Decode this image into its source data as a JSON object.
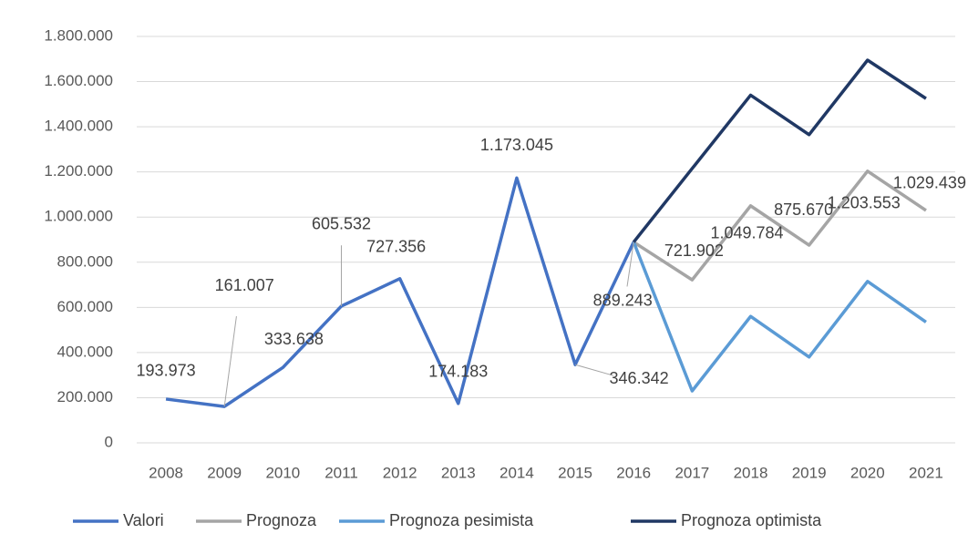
{
  "chart_data": {
    "type": "line",
    "categories": [
      "2008",
      "2009",
      "2010",
      "2011",
      "2012",
      "2013",
      "2014",
      "2015",
      "2016",
      "2017",
      "2018",
      "2019",
      "2020",
      "2021"
    ],
    "ylim": [
      0,
      1800000
    ],
    "yticks": [
      0,
      {
        "value": 200000,
        "label": "200.000"
      },
      {
        "value": 400000,
        "label": "400.000"
      },
      {
        "value": 600000,
        "label": "600.000"
      },
      {
        "value": 800000,
        "label": "800.000"
      },
      {
        "value": 1000000,
        "label": "1.000.000"
      },
      {
        "value": 1200000,
        "label": "1.200.000"
      },
      {
        "value": 1400000,
        "label": "1.400.000"
      },
      {
        "value": 1600000,
        "label": "1.600.000"
      },
      {
        "value": 1800000,
        "label": "1.800.000"
      }
    ],
    "grid": true,
    "legend": "bottom",
    "series": [
      {
        "name": "Valori",
        "color": "#4472c4",
        "values": [
          193973,
          161007,
          333638,
          605532,
          727356,
          174183,
          1173045,
          346342,
          889243,
          null,
          null,
          null,
          null,
          null
        ],
        "value_labels": [
          "193.973",
          "161.007",
          "333.638",
          "605.532",
          "727.356",
          "174.183",
          "1.173.045",
          "346.342",
          "889.243",
          null,
          null,
          null,
          null,
          null
        ]
      },
      {
        "name": "Prognoza",
        "color": "#a5a5a5",
        "values": [
          null,
          null,
          null,
          null,
          null,
          null,
          null,
          null,
          889243,
          721902,
          1049784,
          875670,
          1203553,
          1029439
        ],
        "value_labels": [
          null,
          null,
          null,
          null,
          null,
          null,
          null,
          null,
          null,
          "721.902",
          "1.049.784",
          "875.670",
          "1.203.553",
          "1.029.439"
        ]
      },
      {
        "name": "Prognoza pesimista",
        "color": "#5b9bd5",
        "values": [
          null,
          null,
          null,
          null,
          null,
          null,
          null,
          null,
          889243,
          230000,
          560000,
          380000,
          715000,
          535000
        ]
      },
      {
        "name": "Prognoza optimista",
        "color": "#203864",
        "values": [
          null,
          null,
          null,
          null,
          null,
          null,
          null,
          null,
          889243,
          1215000,
          1540000,
          1365000,
          1695000,
          1525000
        ]
      }
    ]
  }
}
